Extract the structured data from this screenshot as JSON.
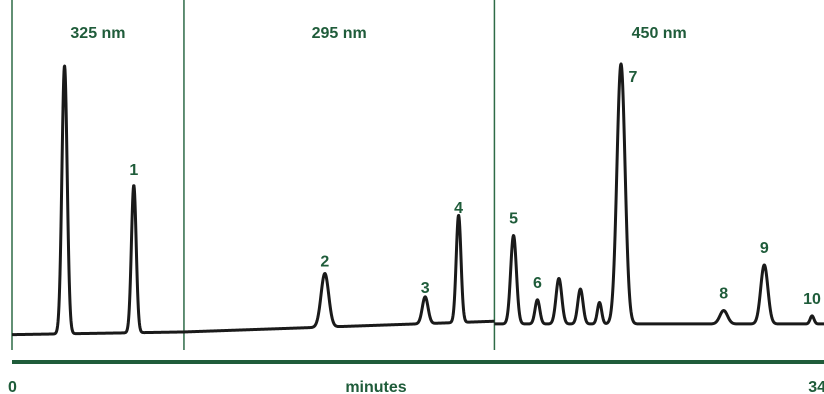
{
  "chart_data": {
    "type": "line",
    "title": "",
    "xlabel": "minutes",
    "ylabel": "",
    "xlim": [
      0,
      34
    ],
    "x_tick_labels": [
      "0",
      "34"
    ],
    "grid": false,
    "legend": "none",
    "colors": {
      "trace": "#1a1a1a",
      "accent": "#1f5c3a",
      "divider": "#2e6b47"
    },
    "segments": [
      {
        "name": "325 nm",
        "x_range": [
          0,
          7.2
        ],
        "baseline": 0.02,
        "baseline_end": 0.03,
        "peaks": [
          {
            "label": "",
            "x": 2.2,
            "height": 1.0,
            "width": 0.11
          },
          {
            "label": "1",
            "x": 5.1,
            "height": 0.55,
            "width": 0.1
          }
        ]
      },
      {
        "name": "295 nm",
        "x_range": [
          7.2,
          20.2
        ],
        "baseline": 0.03,
        "baseline_end": 0.07,
        "peaks": [
          {
            "label": "2",
            "x": 13.1,
            "height": 0.2,
            "width": 0.16
          },
          {
            "label": "3",
            "x": 17.3,
            "height": 0.1,
            "width": 0.12
          },
          {
            "label": "4",
            "x": 18.7,
            "height": 0.4,
            "width": 0.1
          }
        ]
      },
      {
        "name": "450 nm",
        "x_range": [
          20.2,
          34
        ],
        "baseline": 0.06,
        "baseline_end": 0.06,
        "peaks": [
          {
            "label": "5",
            "x": 21.0,
            "height": 0.33,
            "width": 0.12
          },
          {
            "label": "6",
            "x": 22.0,
            "height": 0.09,
            "width": 0.1
          },
          {
            "label": "",
            "x": 22.9,
            "height": 0.17,
            "width": 0.12
          },
          {
            "label": "",
            "x": 23.8,
            "height": 0.13,
            "width": 0.11
          },
          {
            "label": "",
            "x": 24.6,
            "height": 0.08,
            "width": 0.09
          },
          {
            "label": "7",
            "x": 25.5,
            "height": 0.97,
            "width": 0.17
          },
          {
            "label": "8",
            "x": 29.8,
            "height": 0.05,
            "width": 0.16
          },
          {
            "label": "9",
            "x": 31.5,
            "height": 0.22,
            "width": 0.15
          },
          {
            "label": "10",
            "x": 33.5,
            "height": 0.03,
            "width": 0.08
          }
        ]
      }
    ]
  }
}
